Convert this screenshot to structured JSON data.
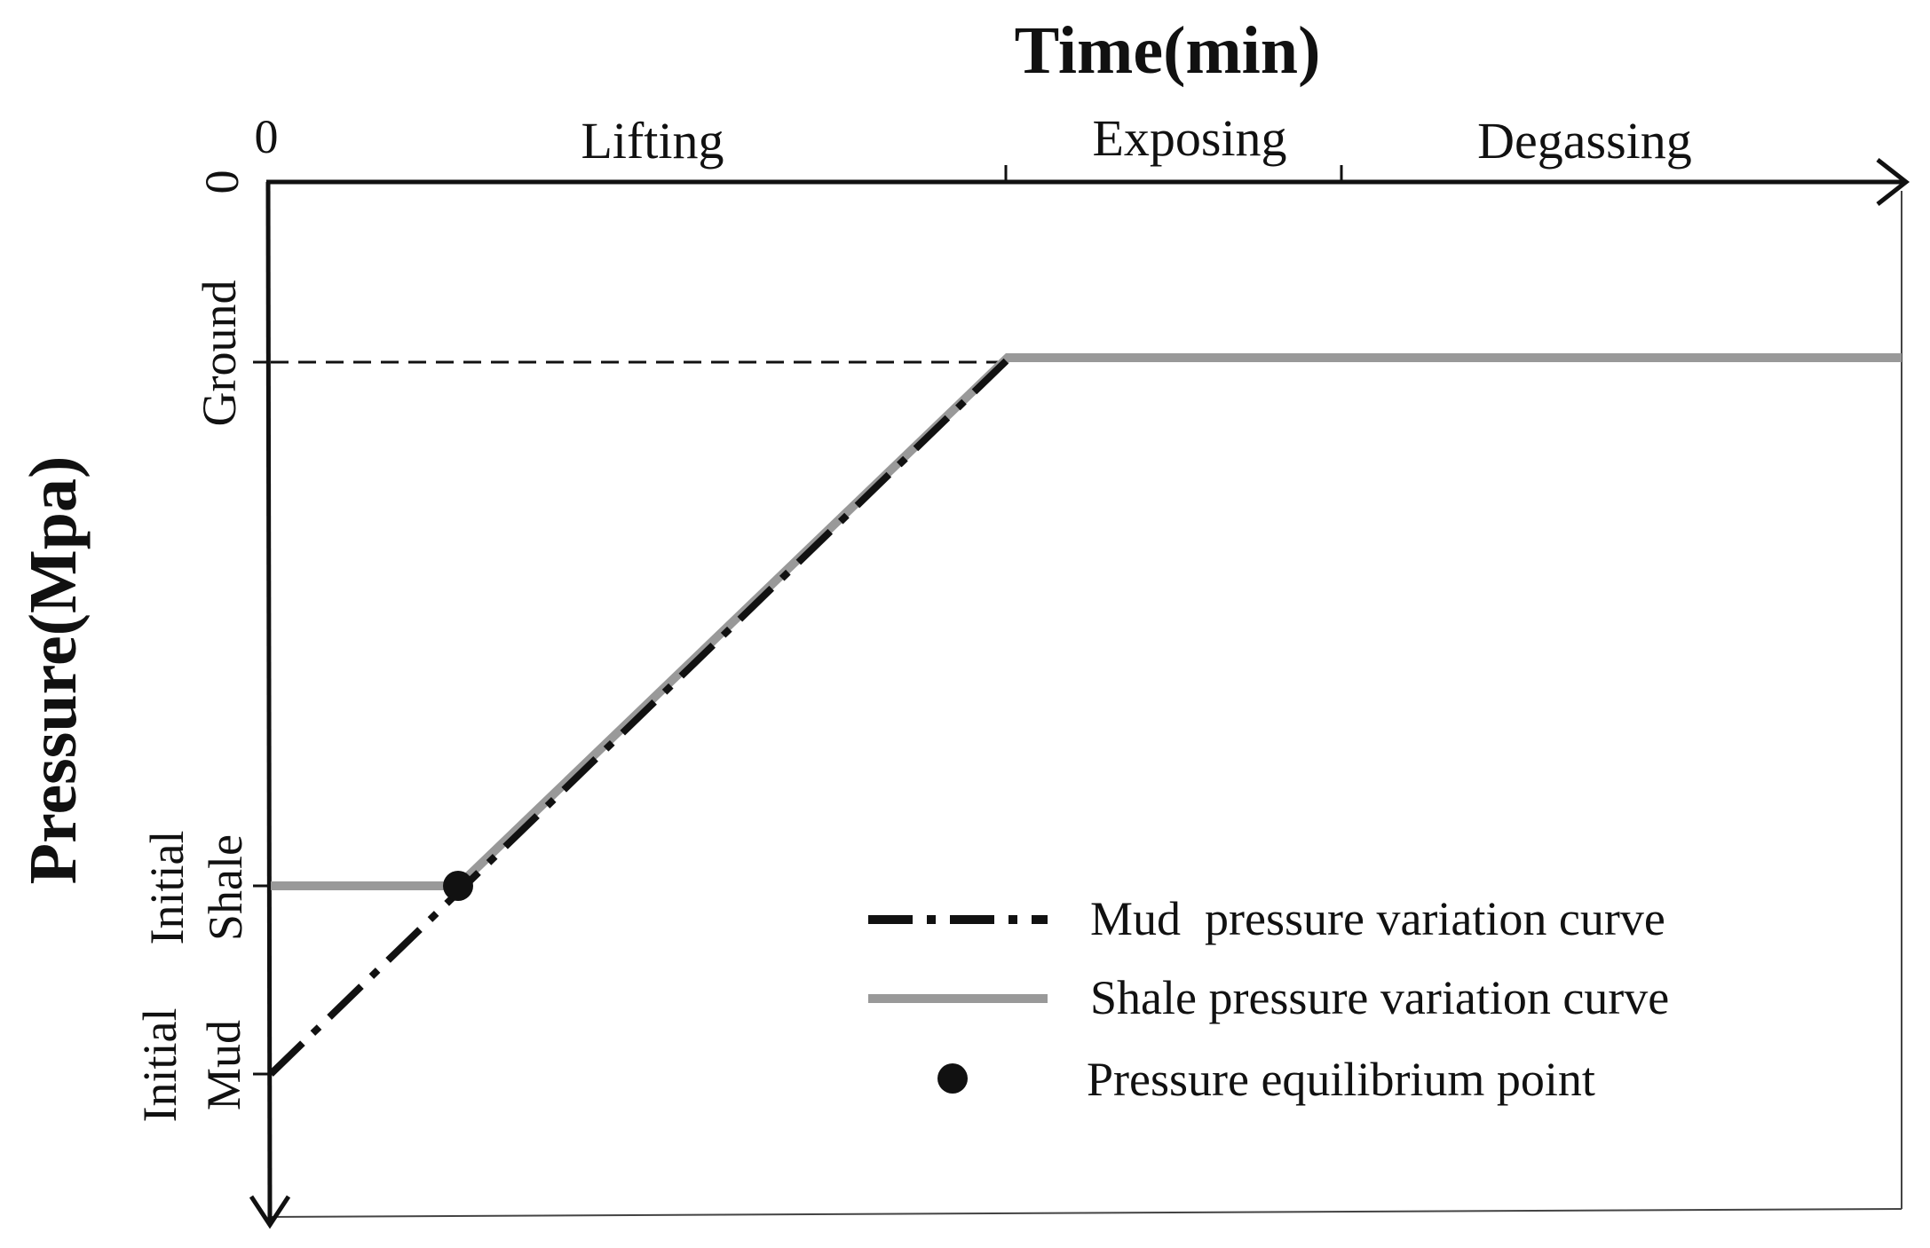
{
  "title": "Time(min)",
  "y_axis_label": "Pressure(Mpa)",
  "x_origin_label": "0",
  "y_origin_label": "0",
  "phases": [
    "Lifting",
    "Exposing",
    "Degassing"
  ],
  "y_levels": {
    "ground": "Ground",
    "initial_shale": [
      "Initial",
      "Shale"
    ],
    "initial_mud": [
      "Initial",
      "Mud"
    ]
  },
  "legend": {
    "mud": "Mud  pressure variation curve",
    "shale": "Shale pressure variation curve",
    "point": "Pressure equilibrium point"
  },
  "colors": {
    "axis": "#111111",
    "mud_curve": "#111111",
    "shale_curve": "#999999",
    "point": "#111111"
  }
}
